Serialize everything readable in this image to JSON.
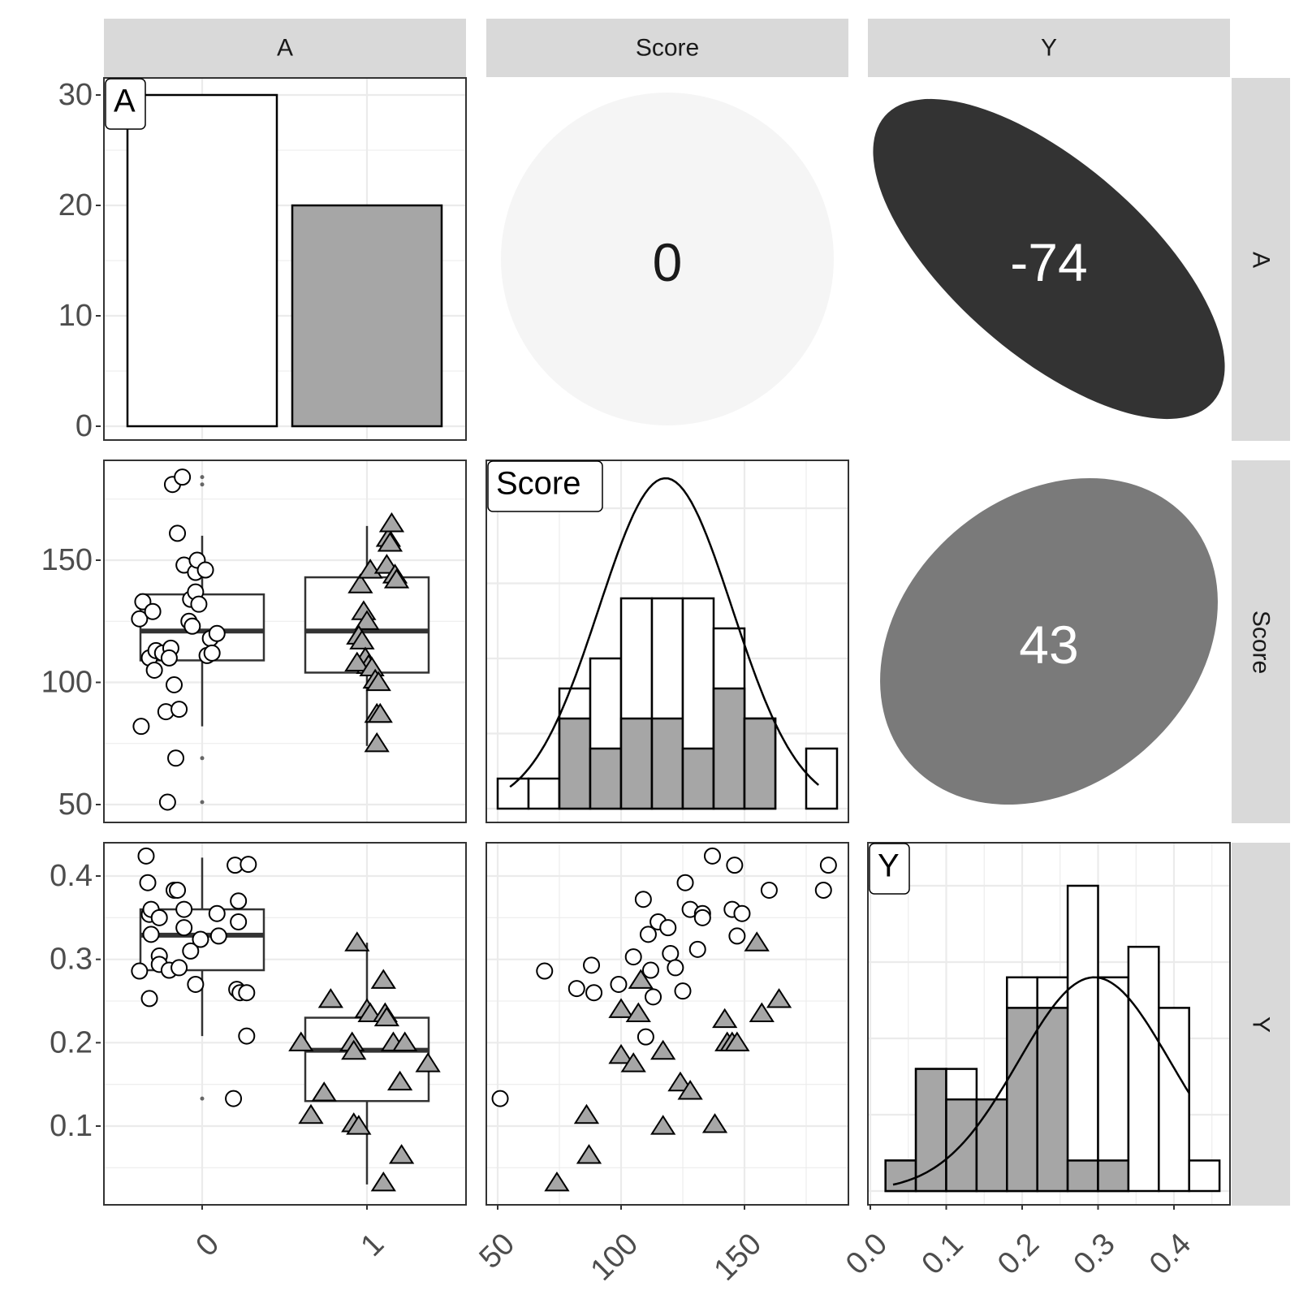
{
  "strips": {
    "columns": [
      "A",
      "Score",
      "Y"
    ],
    "rows": [
      "A",
      "Score",
      "Y"
    ]
  },
  "colors": {
    "group0": "#ffffff",
    "group1": "#a6a6a6",
    "strip": "#d9d9d9",
    "grid": "#ebebeb"
  },
  "chart_data": [
    {
      "type": "bar",
      "panel": "A x A",
      "label": "A",
      "categories": [
        "0",
        "1"
      ],
      "values": [
        30,
        20
      ],
      "ylim": [
        0,
        30
      ],
      "y_ticks": [
        0,
        10,
        20,
        30
      ]
    },
    {
      "type": "correlation",
      "panel": "Score x A",
      "value": 0,
      "value_text": "0",
      "fill": "#f5f5f5"
    },
    {
      "type": "correlation",
      "panel": "Y x A",
      "value": -74,
      "value_text": "-74",
      "fill": "#333333"
    },
    {
      "type": "boxplot",
      "panel": "A x Score",
      "categories": [
        "0",
        "1"
      ],
      "y_ticks": [
        50,
        100,
        150
      ],
      "ylim": [
        45,
        190
      ],
      "boxes": [
        {
          "group": "0",
          "q1": 109,
          "median": 121,
          "q3": 136,
          "whisker_low": 82,
          "whisker_high": 160,
          "outliers": [
            181,
            184,
            69,
            51
          ]
        },
        {
          "group": "1",
          "q1": 104,
          "median": 121,
          "q3": 143,
          "whisker_low": 74,
          "whisker_high": 164,
          "outliers": []
        }
      ],
      "points": {
        "0": [
          [
            -0.38,
            126
          ],
          [
            -0.36,
            133
          ],
          [
            -0.32,
            110
          ],
          [
            -0.3,
            129
          ],
          [
            -0.29,
            105
          ],
          [
            -0.28,
            113
          ],
          [
            -0.24,
            112
          ],
          [
            -0.22,
            88
          ],
          [
            -0.21,
            51
          ],
          [
            -0.19,
            114
          ],
          [
            -0.2,
            110
          ],
          [
            -0.18,
            181
          ],
          [
            -0.17,
            99
          ],
          [
            -0.15,
            161
          ],
          [
            -0.14,
            89
          ],
          [
            -0.16,
            69
          ],
          [
            -0.12,
            184
          ],
          [
            -0.11,
            148
          ],
          [
            -0.08,
            125
          ],
          [
            -0.07,
            134
          ],
          [
            -0.06,
            123
          ],
          [
            -0.04,
            137
          ],
          [
            -0.04,
            145
          ],
          [
            -0.03,
            150
          ],
          [
            -0.02,
            132
          ],
          [
            0.02,
            146
          ],
          [
            0.03,
            111
          ],
          [
            0.05,
            118
          ],
          [
            0.06,
            112
          ],
          [
            0.09,
            120
          ],
          [
            -0.37,
            82
          ]
        ],
        "1": [
          [
            0.96,
            140
          ],
          [
            0.98,
            129
          ],
          [
            1.0,
            125
          ],
          [
            0.95,
            119
          ],
          [
            0.97,
            117
          ],
          [
            0.99,
            110
          ],
          [
            1.01,
            107
          ],
          [
            0.94,
            108
          ],
          [
            1.03,
            106
          ],
          [
            1.05,
            101
          ],
          [
            1.07,
            100
          ],
          [
            1.06,
            87
          ],
          [
            1.08,
            87
          ],
          [
            1.02,
            146
          ],
          [
            1.12,
            148
          ],
          [
            1.13,
            159
          ],
          [
            1.14,
            157
          ],
          [
            1.15,
            165
          ],
          [
            1.17,
            144
          ],
          [
            1.18,
            142
          ],
          [
            1.06,
            75
          ]
        ]
      }
    },
    {
      "type": "histogram",
      "panel": "Score x Score",
      "label": "Score",
      "bins": [
        {
          "x0": 50,
          "x1": 62.5,
          "n0": 1,
          "n1": 0
        },
        {
          "x0": 62.5,
          "x1": 75,
          "n0": 1,
          "n1": 0
        },
        {
          "x0": 75,
          "x1": 87.5,
          "n0": 1,
          "n1": 3
        },
        {
          "x0": 87.5,
          "x1": 100,
          "n0": 3,
          "n1": 2
        },
        {
          "x0": 100,
          "x1": 112.5,
          "n0": 4,
          "n1": 3
        },
        {
          "x0": 112.5,
          "x1": 125,
          "n0": 4,
          "n1": 3
        },
        {
          "x0": 125,
          "x1": 137.5,
          "n0": 5,
          "n1": 2
        },
        {
          "x0": 137.5,
          "x1": 150,
          "n0": 2,
          "n1": 4
        },
        {
          "x0": 150,
          "x1": 162.5,
          "n0": 0,
          "n1": 3
        },
        {
          "x0": 162.5,
          "x1": 175,
          "n0": 0,
          "n1": 0
        },
        {
          "x0": 175,
          "x1": 187.5,
          "n0": 2,
          "n1": 0
        }
      ],
      "density": {
        "mean": 118,
        "sd": 27,
        "peak": 11,
        "xrange": [
          55,
          180
        ]
      },
      "xlim": [
        45,
        192
      ]
    },
    {
      "type": "correlation",
      "panel": "Y x Score",
      "value": 43,
      "value_text": "43",
      "fill": "#7a7a7a"
    },
    {
      "type": "boxplot",
      "panel": "A x Y",
      "categories": [
        "0",
        "1"
      ],
      "y_ticks": [
        0.1,
        0.2,
        0.3,
        0.4
      ],
      "y_tick_labels": [
        "0.1",
        "0.2",
        "0.3",
        "0.4"
      ],
      "ylim": [
        0.01,
        0.44
      ],
      "boxes": [
        {
          "group": "0",
          "q1": 0.287,
          "median": 0.329,
          "q3": 0.36,
          "whisker_low": 0.208,
          "whisker_high": 0.422,
          "outliers": [
            0.133
          ]
        },
        {
          "group": "1",
          "q1": 0.13,
          "median": 0.191,
          "q3": 0.23,
          "whisker_low": 0.03,
          "whisker_high": 0.32,
          "outliers": []
        }
      ],
      "points": {
        "0": [
          [
            -0.38,
            0.286
          ],
          [
            -0.34,
            0.424
          ],
          [
            -0.33,
            0.392
          ],
          [
            -0.32,
            0.354
          ],
          [
            -0.31,
            0.36
          ],
          [
            -0.31,
            0.33
          ],
          [
            -0.32,
            0.253
          ],
          [
            -0.26,
            0.35
          ],
          [
            -0.26,
            0.304
          ],
          [
            -0.26,
            0.294
          ],
          [
            -0.2,
            0.287
          ],
          [
            -0.17,
            0.383
          ],
          [
            -0.15,
            0.383
          ],
          [
            -0.14,
            0.29
          ],
          [
            -0.11,
            0.338
          ],
          [
            -0.11,
            0.36
          ],
          [
            -0.07,
            0.31
          ],
          [
            -0.04,
            0.27
          ],
          [
            -0.01,
            0.324
          ],
          [
            0.09,
            0.355
          ],
          [
            0.1,
            0.328
          ],
          [
            0.2,
            0.413
          ],
          [
            0.22,
            0.37
          ],
          [
            0.22,
            0.345
          ],
          [
            0.21,
            0.264
          ],
          [
            0.23,
            0.26
          ],
          [
            0.28,
            0.414
          ],
          [
            0.27,
            0.26
          ],
          [
            0.27,
            0.208
          ],
          [
            0.19,
            0.133
          ]
        ],
        "1": [
          [
            0.6,
            0.2
          ],
          [
            0.66,
            0.113
          ],
          [
            0.74,
            0.14
          ],
          [
            0.78,
            0.252
          ],
          [
            0.91,
            0.2
          ],
          [
            0.92,
            0.19
          ],
          [
            0.92,
            0.103
          ],
          [
            0.95,
            0.1
          ],
          [
            0.94,
            0.32
          ],
          [
            1.0,
            0.24
          ],
          [
            1.02,
            0.235
          ],
          [
            1.1,
            0.275
          ],
          [
            1.11,
            0.235
          ],
          [
            1.12,
            0.23
          ],
          [
            1.1,
            0.032
          ],
          [
            1.16,
            0.2
          ],
          [
            1.21,
            0.065
          ],
          [
            1.2,
            0.153
          ],
          [
            1.37,
            0.175
          ],
          [
            1.23,
            0.2
          ]
        ]
      }
    },
    {
      "type": "scatter",
      "panel": "Score x Y",
      "x_ticks": [
        50,
        100,
        150
      ],
      "xlim": [
        45,
        192
      ],
      "ylim": [
        0.01,
        0.44
      ],
      "series": [
        {
          "group": "0",
          "points": [
            [
              51,
              0.133
            ],
            [
              69,
              0.286
            ],
            [
              82,
              0.265
            ],
            [
              88,
              0.293
            ],
            [
              89,
              0.26
            ],
            [
              99,
              0.27
            ],
            [
              105,
              0.303
            ],
            [
              109,
              0.372
            ],
            [
              110,
              0.207
            ],
            [
              111,
              0.33
            ],
            [
              112,
              0.287
            ],
            [
              113,
              0.255
            ],
            [
              115,
              0.345
            ],
            [
              119,
              0.338
            ],
            [
              120,
              0.307
            ],
            [
              122,
              0.29
            ],
            [
              125,
              0.262
            ],
            [
              126,
              0.392
            ],
            [
              128,
              0.36
            ],
            [
              131,
              0.312
            ],
            [
              133,
              0.355
            ],
            [
              133,
              0.35
            ],
            [
              137,
              0.424
            ],
            [
              145,
              0.36
            ],
            [
              146,
              0.413
            ],
            [
              147,
              0.328
            ],
            [
              149,
              0.355
            ],
            [
              160,
              0.383
            ],
            [
              182,
              0.383
            ],
            [
              184,
              0.413
            ]
          ]
        },
        {
          "group": "1",
          "points": [
            [
              74,
              0.032
            ],
            [
              86,
              0.113
            ],
            [
              87,
              0.065
            ],
            [
              100,
              0.185
            ],
            [
              100,
              0.24
            ],
            [
              105,
              0.175
            ],
            [
              107,
              0.235
            ],
            [
              108,
              0.275
            ],
            [
              117,
              0.19
            ],
            [
              117,
              0.1
            ],
            [
              124,
              0.152
            ],
            [
              128,
              0.142
            ],
            [
              138,
              0.102
            ],
            [
              142,
              0.228
            ],
            [
              143,
              0.2
            ],
            [
              145,
              0.2
            ],
            [
              147,
              0.2
            ],
            [
              155,
              0.32
            ],
            [
              157,
              0.235
            ],
            [
              164,
              0.252
            ]
          ]
        }
      ]
    },
    {
      "type": "histogram",
      "panel": "Y x Y",
      "label": "Y",
      "bins": [
        {
          "x0": 0.02,
          "x1": 0.06,
          "n0": 0,
          "n1": 1
        },
        {
          "x0": 0.06,
          "x1": 0.1,
          "n0": 0,
          "n1": 4
        },
        {
          "x0": 0.1,
          "x1": 0.14,
          "n0": 1,
          "n1": 3
        },
        {
          "x0": 0.14,
          "x1": 0.18,
          "n0": 0,
          "n1": 3
        },
        {
          "x0": 0.18,
          "x1": 0.22,
          "n0": 1,
          "n1": 6
        },
        {
          "x0": 0.22,
          "x1": 0.26,
          "n0": 1,
          "n1": 6
        },
        {
          "x0": 0.26,
          "x1": 0.3,
          "n0": 9,
          "n1": 1
        },
        {
          "x0": 0.3,
          "x1": 0.34,
          "n0": 6,
          "n1": 1
        },
        {
          "x0": 0.34,
          "x1": 0.38,
          "n0": 8,
          "n1": 0
        },
        {
          "x0": 0.38,
          "x1": 0.42,
          "n0": 6,
          "n1": 0
        },
        {
          "x0": 0.42,
          "x1": 0.46,
          "n0": 1,
          "n1": 0
        }
      ],
      "density": {
        "mean": 0.295,
        "sd": 0.1,
        "peak": 7,
        "xrange": [
          0.03,
          0.42
        ]
      },
      "x_ticks": [
        0.0,
        0.1,
        0.2,
        0.3,
        0.4
      ],
      "x_tick_labels": [
        "0.0",
        "0.1",
        "0.2",
        "0.3",
        "0.4"
      ],
      "xlim": [
        0.0,
        0.47
      ]
    }
  ],
  "bottom_axis": {
    "col1_ticks": [
      "0",
      "1"
    ],
    "col2_ticks": [
      "50",
      "100",
      "150"
    ],
    "col3_ticks": [
      "0.0",
      "0.1",
      "0.2",
      "0.3",
      "0.4"
    ]
  }
}
